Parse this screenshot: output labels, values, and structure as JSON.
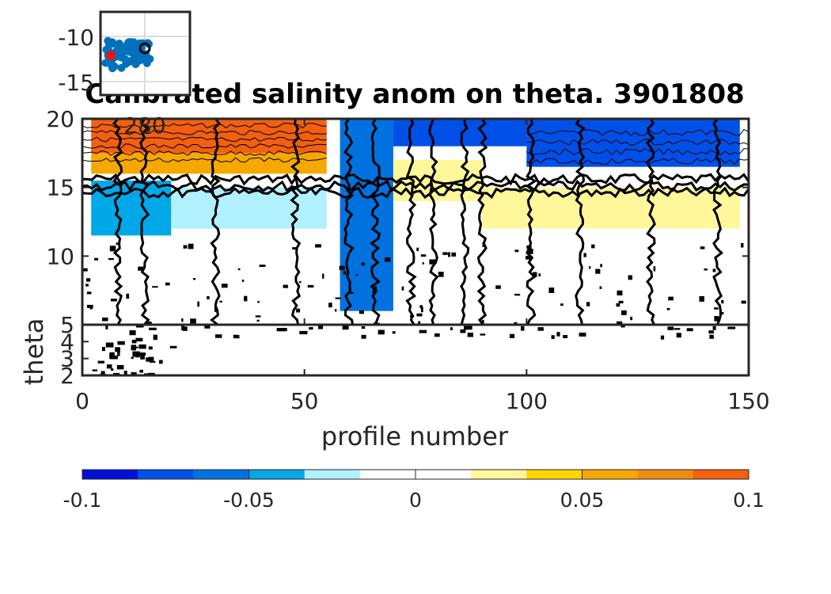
{
  "chart_data": [
    {
      "type": "heatmap",
      "title": "Calibrated salinity anom on theta. 3901808",
      "xlabel": "profile number",
      "ylabel": "theta",
      "xlim": [
        0,
        150
      ],
      "upper_panel_ylim": [
        5,
        20
      ],
      "lower_panel_ylim": [
        2,
        5
      ],
      "x_ticks": [
        "0",
        "50",
        "100",
        "150"
      ],
      "upper_y_ticks": [
        "5",
        "10",
        "15",
        "20"
      ],
      "lower_y_ticks": [
        "2",
        "3",
        "4"
      ],
      "colorbar": {
        "min": -0.1,
        "max": 0.1,
        "tick_values": [
          -0.1,
          -0.05,
          0,
          0.05,
          0.1
        ],
        "tick_labels": [
          "-0.1",
          "-0.05",
          "0",
          "0.05",
          "0.1"
        ],
        "colors": [
          "#0010d8",
          "#0050e8",
          "#0072e0",
          "#00a8e8",
          "#b0f0ff",
          "#ffffff",
          "#ffffff",
          "#fff79a",
          "#ffd700",
          "#f5a800",
          "#f08c10",
          "#f26010"
        ]
      },
      "regions": [
        {
          "x": [
            2,
            55
          ],
          "theta": [
            17.5,
            20
          ],
          "anomaly": 0.09
        },
        {
          "x": [
            2,
            55
          ],
          "theta": [
            16,
            17.5
          ],
          "anomaly": 0.05
        },
        {
          "x": [
            2,
            20
          ],
          "theta": [
            11.5,
            15.5
          ],
          "anomaly": -0.05
        },
        {
          "x": [
            20,
            55
          ],
          "theta": [
            12,
            15
          ],
          "anomaly": -0.02
        },
        {
          "x": [
            58,
            70
          ],
          "theta": [
            6,
            20
          ],
          "anomaly": -0.06
        },
        {
          "x": [
            70,
            100
          ],
          "theta": [
            18,
            20
          ],
          "anomaly": -0.07
        },
        {
          "x": [
            70,
            90
          ],
          "theta": [
            14,
            17
          ],
          "anomaly": 0.02
        },
        {
          "x": [
            90,
            148
          ],
          "theta": [
            12,
            15
          ],
          "anomaly": 0.03
        },
        {
          "x": [
            100,
            148
          ],
          "theta": [
            16.5,
            20
          ],
          "anomaly": -0.08
        },
        {
          "x": [
            80,
            140
          ],
          "theta": [
            5,
            10
          ],
          "anomaly": 0.015
        }
      ]
    },
    {
      "type": "scatter",
      "role": "inset-map",
      "x_ticks": [
        "280"
      ],
      "y_ticks": [
        "-10",
        "-15"
      ],
      "track_color": "#0072bd",
      "first_profile_color": "#ee1111",
      "current_profile_color": "#000000"
    }
  ]
}
